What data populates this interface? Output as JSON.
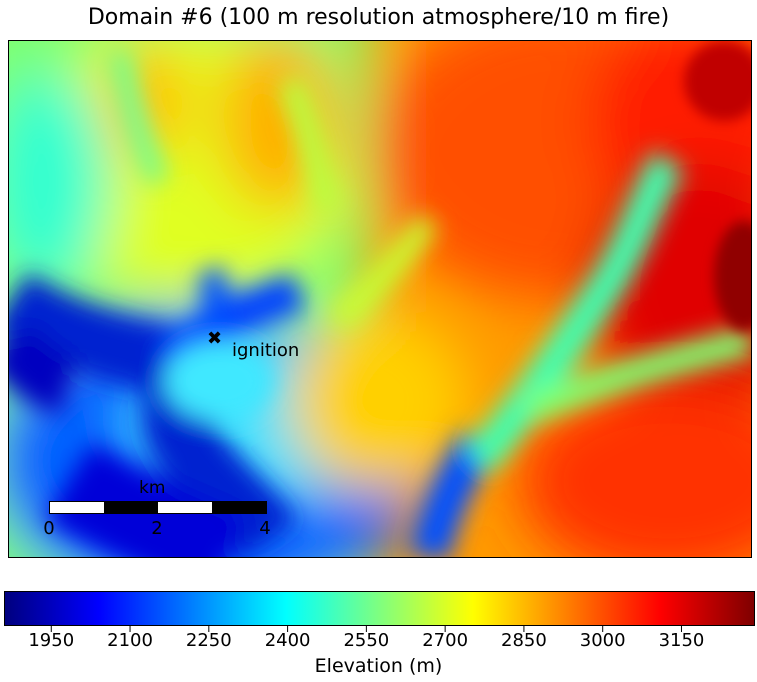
{
  "title": "Domain #6 (100 m resolution atmosphere/10 m fire)",
  "map": {
    "ignition_label": "ignition",
    "ignition_marker": "✖",
    "scalebar": {
      "unit": "km",
      "ticks": [
        "0",
        "2",
        "4"
      ]
    }
  },
  "colorbar": {
    "label": "Elevation (m)",
    "colormap": "jet",
    "range": [
      1860,
      3290
    ],
    "ticks": [
      "1950",
      "2100",
      "2250",
      "2400",
      "2550",
      "2700",
      "2850",
      "3000",
      "3150"
    ],
    "tick_values": [
      1950,
      2100,
      2250,
      2400,
      2550,
      2700,
      2850,
      3000,
      3150
    ],
    "colors": [
      "#00007f",
      "#0000ff",
      "#007fff",
      "#00ffff",
      "#7fff7f",
      "#ffff00",
      "#ff7f00",
      "#ff0000",
      "#7f0000"
    ]
  }
}
